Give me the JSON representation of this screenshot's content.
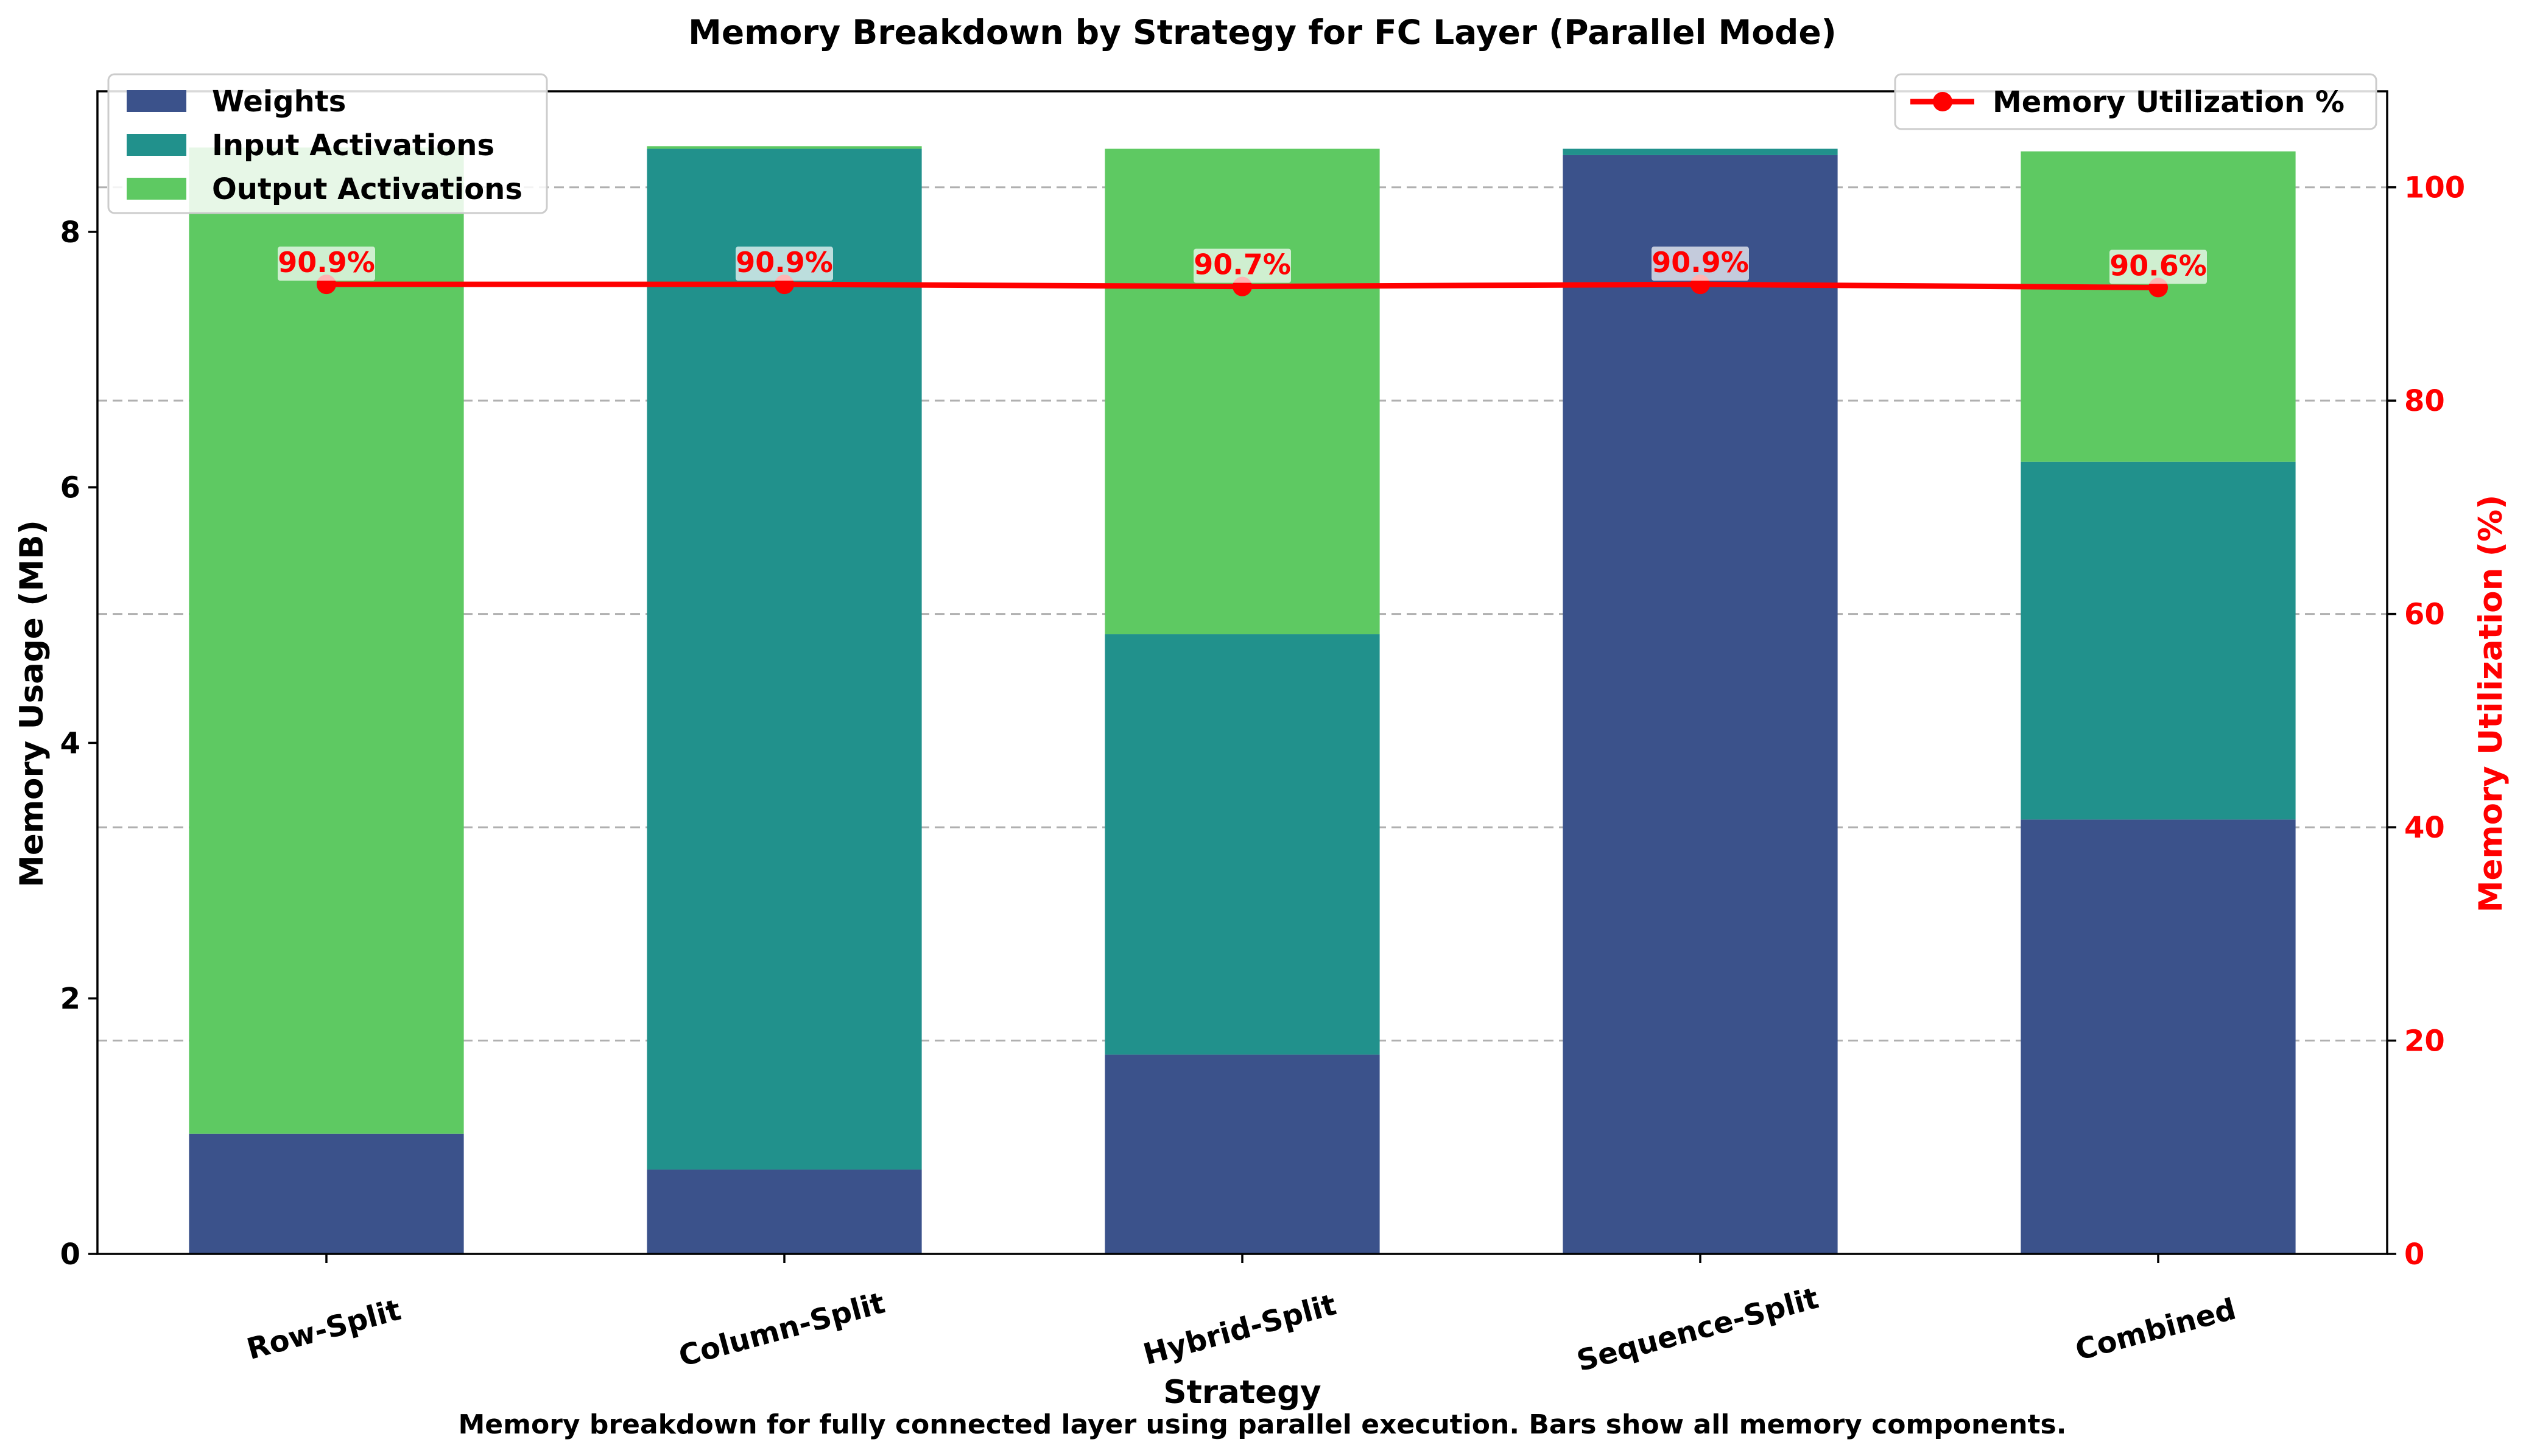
{
  "chart_data": {
    "type": "bar",
    "title": "Memory Breakdown by Strategy for FC Layer (Parallel Mode)",
    "xlabel": "Strategy",
    "ylabel": "Memory Usage (MB)",
    "y2label": "Memory Utilization (%)",
    "caption": "Memory breakdown for fully connected layer using parallel execution. Bars show all memory components.",
    "categories": [
      "Row-Split",
      "Column-Split",
      "Hybrid-Split",
      "Sequence-Split",
      "Combined"
    ],
    "stacked": true,
    "ylim": [
      0,
      9.1
    ],
    "y2lim": [
      0,
      109
    ],
    "yticks": [
      0,
      2,
      4,
      6,
      8
    ],
    "y2ticks": [
      0,
      20,
      40,
      60,
      80,
      100
    ],
    "grid": "horizontal-dashed",
    "legend_left": "top-left",
    "legend_right": "top-right",
    "series": [
      {
        "name": "Weights",
        "color": "#3b528b",
        "values": [
          0.94,
          0.66,
          1.56,
          8.6,
          3.4
        ]
      },
      {
        "name": "Input Activations",
        "color": "#21918c",
        "values": [
          0.0,
          7.99,
          3.29,
          0.05,
          2.8
        ]
      },
      {
        "name": "Output Activations",
        "color": "#5ec962",
        "values": [
          7.72,
          0.02,
          3.8,
          0.0,
          2.43
        ]
      }
    ],
    "line_series": {
      "name": "Memory Utilization %",
      "color": "#ff0000",
      "values": [
        90.9,
        90.9,
        90.7,
        90.9,
        90.6
      ],
      "labels": [
        "90.9%",
        "90.9%",
        "90.7%",
        "90.9%",
        "90.6%"
      ]
    }
  }
}
